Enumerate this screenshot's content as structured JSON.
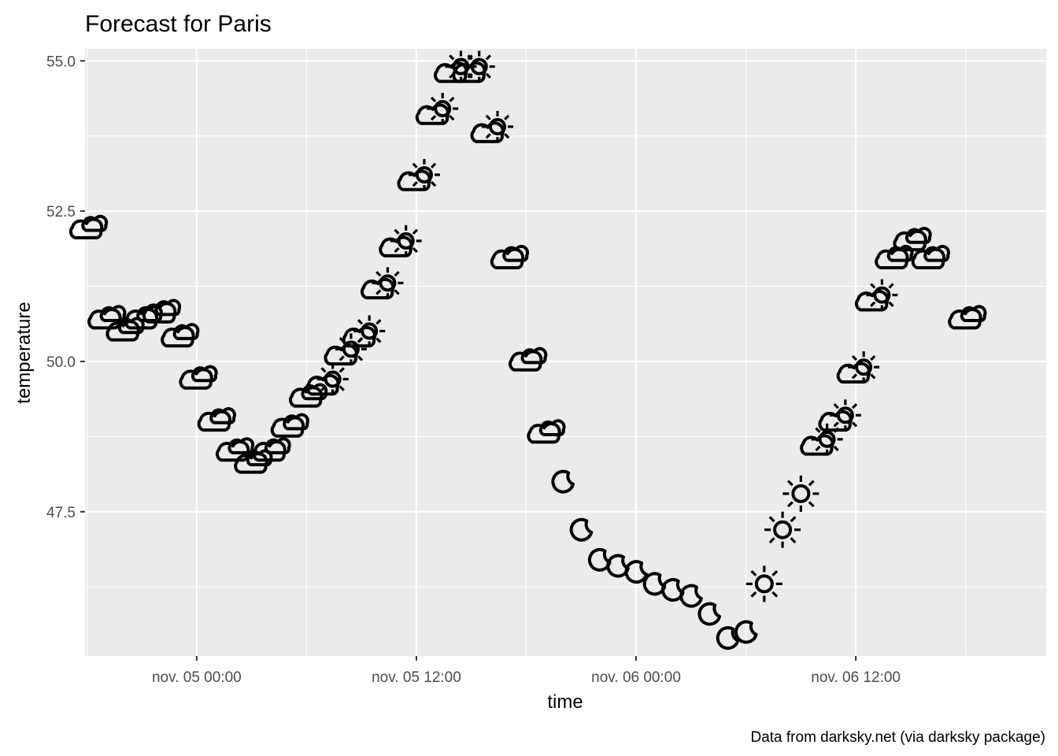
{
  "chart_data": {
    "type": "scatter",
    "title": "Forecast for Paris",
    "xlabel": "time",
    "ylabel": "temperature",
    "caption": "Data from darksky.net (via darksky package)",
    "x_unit": "hours since nov. 04 18:00",
    "xlim": [
      -0.1,
      52.4
    ],
    "ylim": [
      45.1,
      55.2
    ],
    "x_ticks": [
      {
        "value": 6,
        "label": "nov. 05 00:00"
      },
      {
        "value": 18,
        "label": "nov. 05 12:00"
      },
      {
        "value": 30,
        "label": "nov. 06 00:00"
      },
      {
        "value": 42,
        "label": "nov. 06 12:00"
      }
    ],
    "y_ticks": [
      {
        "value": 47.5,
        "label": "47.5"
      },
      {
        "value": 50.0,
        "label": "50.0"
      },
      {
        "value": 52.5,
        "label": "52.5"
      },
      {
        "value": 55.0,
        "label": "55.0"
      }
    ],
    "grid": true,
    "background": "#ebebeb",
    "grid_color": "#ffffff",
    "icon_color": "#000000",
    "points": [
      {
        "x": 0,
        "y": 52.2,
        "icon": "cloudy"
      },
      {
        "x": 1,
        "y": 50.7,
        "icon": "cloudy"
      },
      {
        "x": 2,
        "y": 50.5,
        "icon": "cloudy"
      },
      {
        "x": 3,
        "y": 50.7,
        "icon": "cloudy"
      },
      {
        "x": 4,
        "y": 50.8,
        "icon": "cloudy"
      },
      {
        "x": 5,
        "y": 50.4,
        "icon": "cloudy"
      },
      {
        "x": 6,
        "y": 49.7,
        "icon": "cloudy"
      },
      {
        "x": 7,
        "y": 49.0,
        "icon": "cloudy"
      },
      {
        "x": 8,
        "y": 48.5,
        "icon": "cloudy"
      },
      {
        "x": 9,
        "y": 48.3,
        "icon": "cloudy"
      },
      {
        "x": 10,
        "y": 48.5,
        "icon": "cloudy"
      },
      {
        "x": 11,
        "y": 48.9,
        "icon": "cloudy"
      },
      {
        "x": 12,
        "y": 49.4,
        "icon": "cloudy"
      },
      {
        "x": 13,
        "y": 49.6,
        "icon": "partly-cloudy-day"
      },
      {
        "x": 14,
        "y": 50.1,
        "icon": "partly-cloudy-day"
      },
      {
        "x": 15,
        "y": 50.4,
        "icon": "partly-cloudy-day"
      },
      {
        "x": 16,
        "y": 51.2,
        "icon": "partly-cloudy-day"
      },
      {
        "x": 17,
        "y": 51.9,
        "icon": "partly-cloudy-day"
      },
      {
        "x": 18,
        "y": 53.0,
        "icon": "partly-cloudy-day"
      },
      {
        "x": 19,
        "y": 54.1,
        "icon": "partly-cloudy-day"
      },
      {
        "x": 20,
        "y": 54.8,
        "icon": "partly-cloudy-day"
      },
      {
        "x": 21,
        "y": 54.8,
        "icon": "partly-cloudy-day"
      },
      {
        "x": 22,
        "y": 53.8,
        "icon": "partly-cloudy-day"
      },
      {
        "x": 23,
        "y": 51.7,
        "icon": "cloudy"
      },
      {
        "x": 24,
        "y": 50.0,
        "icon": "cloudy"
      },
      {
        "x": 25,
        "y": 48.8,
        "icon": "cloudy"
      },
      {
        "x": 26,
        "y": 48.0,
        "icon": "clear-night"
      },
      {
        "x": 27,
        "y": 47.2,
        "icon": "clear-night"
      },
      {
        "x": 28,
        "y": 46.7,
        "icon": "clear-night"
      },
      {
        "x": 29,
        "y": 46.6,
        "icon": "clear-night"
      },
      {
        "x": 30,
        "y": 46.5,
        "icon": "clear-night"
      },
      {
        "x": 31,
        "y": 46.3,
        "icon": "clear-night"
      },
      {
        "x": 32,
        "y": 46.2,
        "icon": "clear-night"
      },
      {
        "x": 33,
        "y": 46.1,
        "icon": "clear-night"
      },
      {
        "x": 34,
        "y": 45.8,
        "icon": "clear-night"
      },
      {
        "x": 35,
        "y": 45.4,
        "icon": "clear-night"
      },
      {
        "x": 36,
        "y": 45.5,
        "icon": "clear-night"
      },
      {
        "x": 37,
        "y": 46.3,
        "icon": "clear-day"
      },
      {
        "x": 38,
        "y": 47.2,
        "icon": "clear-day"
      },
      {
        "x": 39,
        "y": 47.8,
        "icon": "clear-day"
      },
      {
        "x": 40,
        "y": 48.6,
        "icon": "partly-cloudy-day"
      },
      {
        "x": 41,
        "y": 49.0,
        "icon": "partly-cloudy-day"
      },
      {
        "x": 42,
        "y": 49.8,
        "icon": "partly-cloudy-day"
      },
      {
        "x": 43,
        "y": 51.0,
        "icon": "partly-cloudy-day"
      },
      {
        "x": 44,
        "y": 51.7,
        "icon": "cloudy"
      },
      {
        "x": 45,
        "y": 52.0,
        "icon": "cloudy"
      },
      {
        "x": 46,
        "y": 51.7,
        "icon": "cloudy"
      },
      {
        "x": 48,
        "y": 50.7,
        "icon": "cloudy"
      }
    ]
  }
}
